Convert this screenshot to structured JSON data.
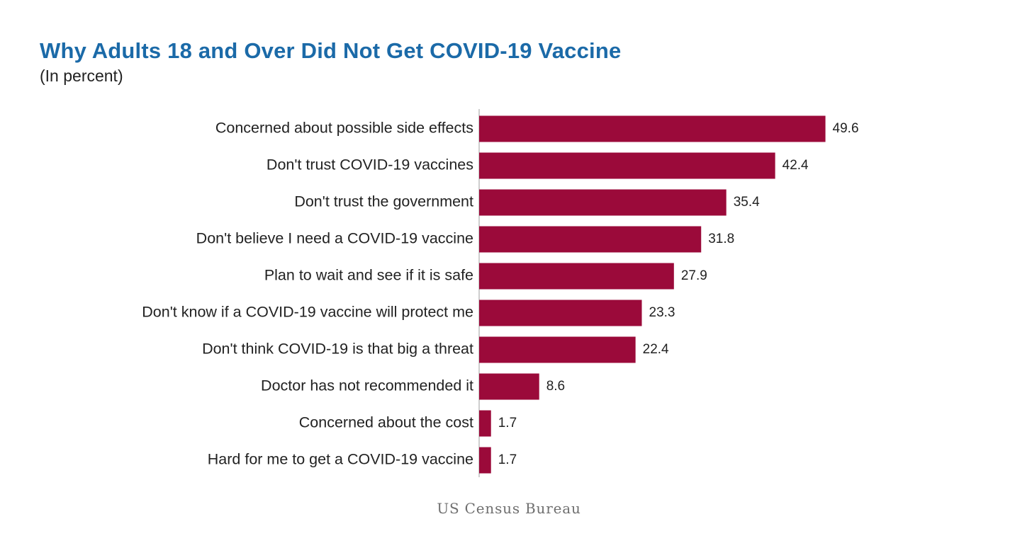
{
  "chart_data": {
    "type": "bar",
    "orientation": "horizontal",
    "title": "Why Adults 18 and Over Did Not Get COVID-19 Vaccine",
    "subtitle": "(In percent)",
    "categories": [
      "Concerned about possible side effects",
      "Don't trust COVID-19 vaccines",
      "Don't trust the government",
      "Don't believe I need a COVID-19 vaccine",
      "Plan to wait and see if it is safe",
      "Don't know if a COVID-19 vaccine will protect me",
      "Don't think COVID-19 is that big a threat",
      "Doctor has not recommended it",
      "Concerned about the cost",
      "Hard for me to get a COVID-19 vaccine"
    ],
    "values": [
      49.6,
      42.4,
      35.4,
      31.8,
      27.9,
      23.3,
      22.4,
      8.6,
      1.7,
      1.7
    ],
    "value_labels": [
      "49.6",
      "42.4",
      "35.4",
      "31.8",
      "27.9",
      "23.3",
      "22.4",
      "8.6",
      "1.7",
      "1.7"
    ],
    "xlim": [
      0,
      50
    ],
    "bar_color": "#9b0a3a",
    "title_color": "#1b6aa8",
    "grid": false,
    "legend": "none"
  },
  "caption": "US Census Bureau"
}
